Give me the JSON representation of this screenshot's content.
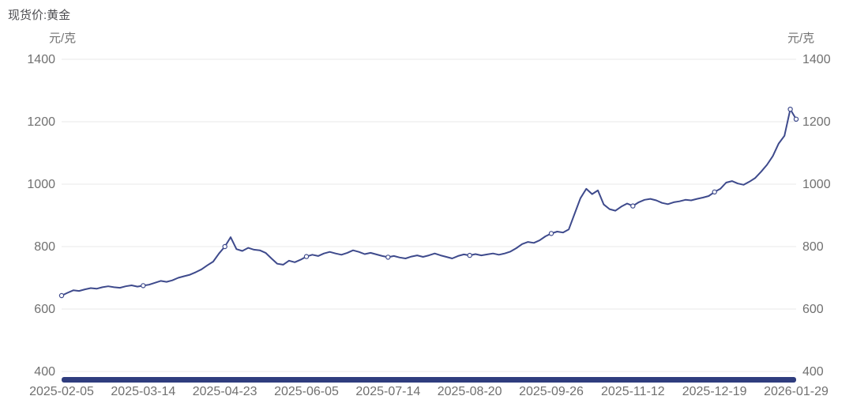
{
  "title": "现货价:黄金",
  "unit_left": "元/克",
  "unit_right": "元/克",
  "colors": {
    "line": "#3E4A8C",
    "grid": "#E8E8E8",
    "axis_text": "#707070",
    "title_text": "#4E4E52",
    "navigator": "#2F3D7E",
    "marker_fill": "#FFFFFF",
    "background": "#FFFFFF"
  },
  "chart_data": {
    "type": "line",
    "title": "现货价:黄金",
    "ylabel": "元/克",
    "legend_position": "none",
    "grid": true,
    "ylim": [
      400,
      1400
    ],
    "y_ticks": [
      400,
      600,
      800,
      1000,
      1200,
      1400
    ],
    "x_tick_labels": [
      "2025-02-05",
      "2025-03-14",
      "2025-04-23",
      "2025-06-05",
      "2025-07-14",
      "2025-08-20",
      "2025-09-26",
      "2025-11-12",
      "2025-12-19",
      "2026-01-29"
    ],
    "marker_every": 14,
    "extra_marker_indices": [
      125
    ],
    "series": [
      {
        "name": "现货价:黄金",
        "values": [
          643,
          652,
          660,
          658,
          663,
          667,
          665,
          670,
          673,
          670,
          668,
          673,
          676,
          672,
          675,
          678,
          684,
          690,
          687,
          692,
          700,
          705,
          710,
          718,
          727,
          740,
          752,
          778,
          800,
          830,
          792,
          786,
          796,
          790,
          788,
          780,
          762,
          745,
          742,
          755,
          750,
          758,
          768,
          774,
          770,
          778,
          783,
          778,
          774,
          780,
          788,
          783,
          776,
          780,
          775,
          770,
          766,
          770,
          765,
          762,
          768,
          772,
          767,
          772,
          778,
          772,
          767,
          762,
          770,
          775,
          772,
          776,
          772,
          775,
          778,
          774,
          778,
          784,
          795,
          808,
          815,
          812,
          820,
          833,
          842,
          848,
          845,
          855,
          905,
          955,
          985,
          968,
          980,
          935,
          920,
          915,
          928,
          938,
          930,
          942,
          950,
          953,
          948,
          940,
          936,
          942,
          945,
          950,
          948,
          953,
          957,
          962,
          975,
          985,
          1005,
          1010,
          1002,
          998,
          1008,
          1020,
          1040,
          1062,
          1090,
          1130,
          1155,
          1240,
          1208
        ]
      }
    ]
  }
}
